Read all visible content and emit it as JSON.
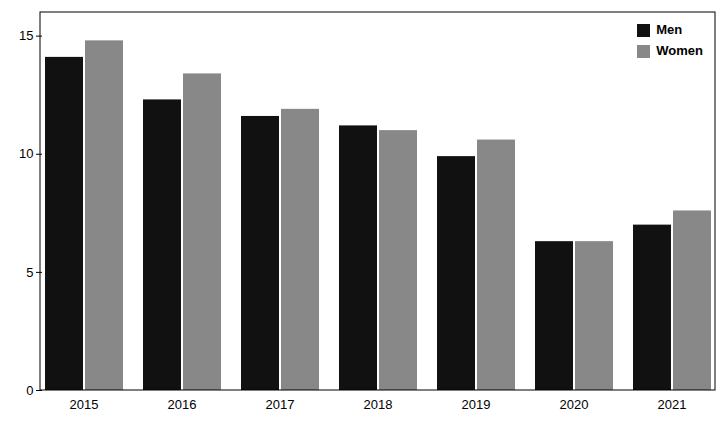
{
  "chart_data": {
    "type": "bar",
    "categories": [
      "2015",
      "2016",
      "2017",
      "2018",
      "2019",
      "2020",
      "2021"
    ],
    "series": [
      {
        "name": "Men",
        "color": "#111111",
        "values": [
          14.1,
          12.3,
          11.6,
          11.2,
          9.9,
          6.3,
          7.0
        ]
      },
      {
        "name": "Women",
        "color": "#888888",
        "values": [
          14.8,
          13.4,
          11.9,
          11.0,
          10.6,
          6.3,
          7.6
        ]
      }
    ],
    "ylim": [
      0,
      16
    ],
    "yticks": [
      0,
      5,
      10,
      15
    ],
    "grid": false,
    "legend": "upper right"
  }
}
